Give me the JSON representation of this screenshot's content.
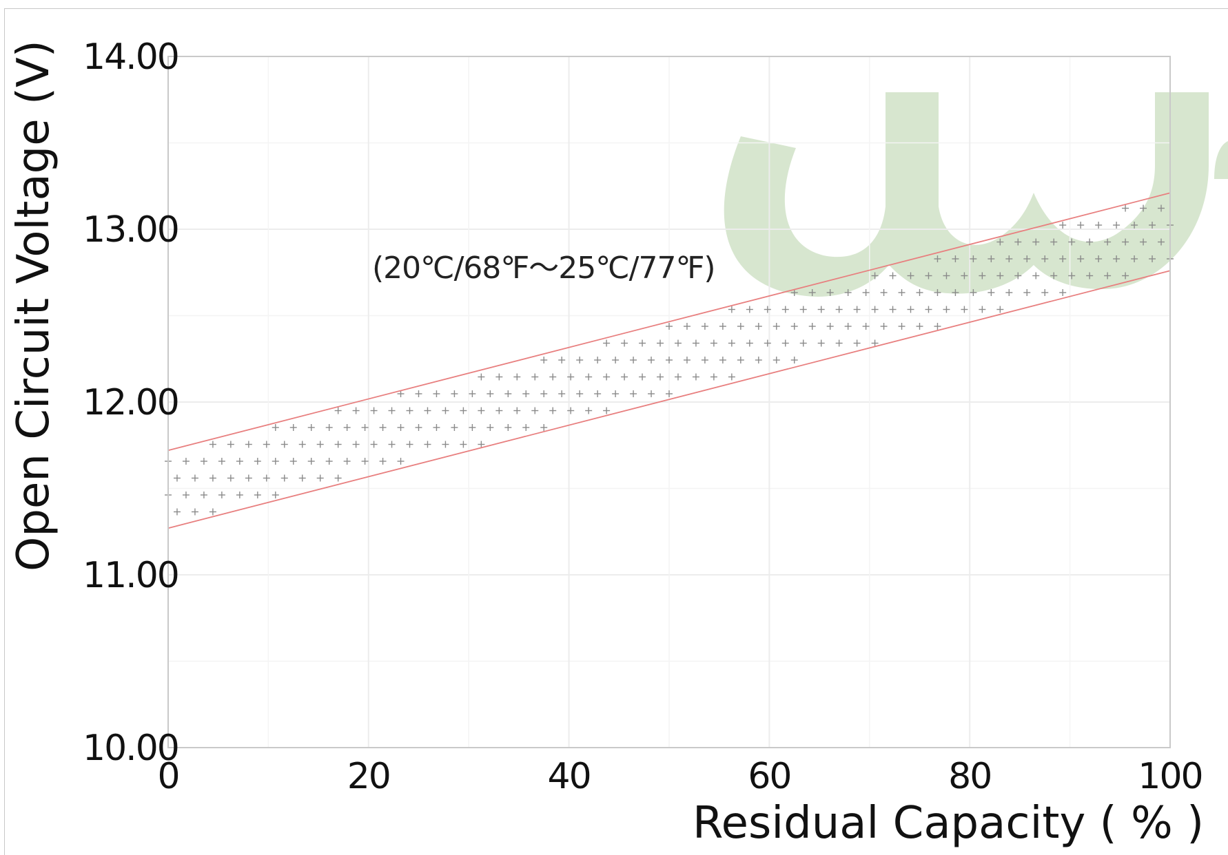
{
  "chart_data": {
    "type": "area",
    "title": "",
    "xlabel": "Residual Capacity ( % )",
    "ylabel": "Open Circuit Voltage (V)",
    "xlim": [
      0,
      100
    ],
    "ylim": [
      10.0,
      14.0
    ],
    "x_ticks": [
      "0",
      "20",
      "40",
      "60",
      "80",
      "100"
    ],
    "y_ticks": [
      "10.00",
      "11.00",
      "12.00",
      "13.00",
      "14.00"
    ],
    "annotation": "(20℃/68℉～25℃/77℉)",
    "series": [
      {
        "name": "",
        "x": [
          0,
          100
        ],
        "y": [
          11.72,
          13.21
        ]
      },
      {
        "name": "",
        "x": [
          0,
          100
        ],
        "y": [
          11.27,
          12.76
        ]
      }
    ],
    "band_fill_pattern": "plus",
    "grid": true,
    "colors": {
      "bound_line": "#e87f7f",
      "pattern": "#8a8a8a",
      "watermark": "#d7e6cf"
    }
  }
}
